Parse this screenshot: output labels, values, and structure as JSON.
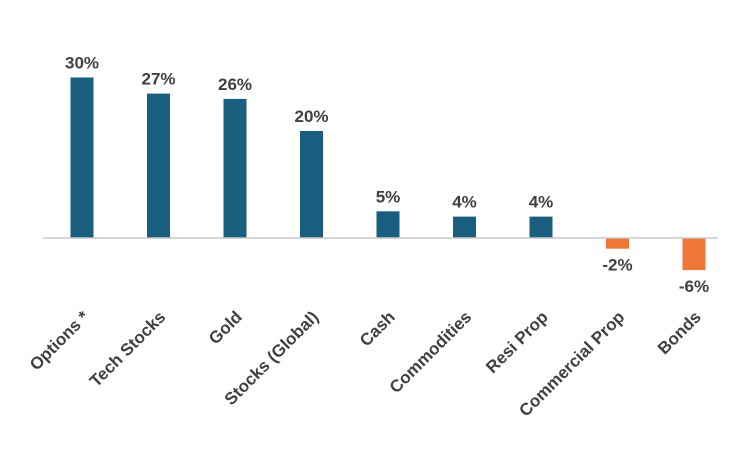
{
  "chart_data": {
    "type": "bar",
    "title": "",
    "xlabel": "",
    "ylabel": "",
    "categories": [
      "Options *",
      "Tech Stocks",
      "Gold",
      "Stocks (Global)",
      "Cash",
      "Commodities",
      "Resi Prop",
      "Commercial Prop",
      "Bonds"
    ],
    "values": [
      30,
      27,
      26,
      20,
      5,
      4,
      4,
      -2,
      -6
    ],
    "value_labels": [
      "30%",
      "27%",
      "26%",
      "20%",
      "5%",
      "4%",
      "4%",
      "-2%",
      "-6%"
    ],
    "ylim": [
      -6,
      30
    ],
    "grid": false,
    "colors": {
      "positive": "#1a5e80",
      "negative": "#ef7634",
      "axis": "#c8c8c8",
      "text": "#404040"
    }
  }
}
